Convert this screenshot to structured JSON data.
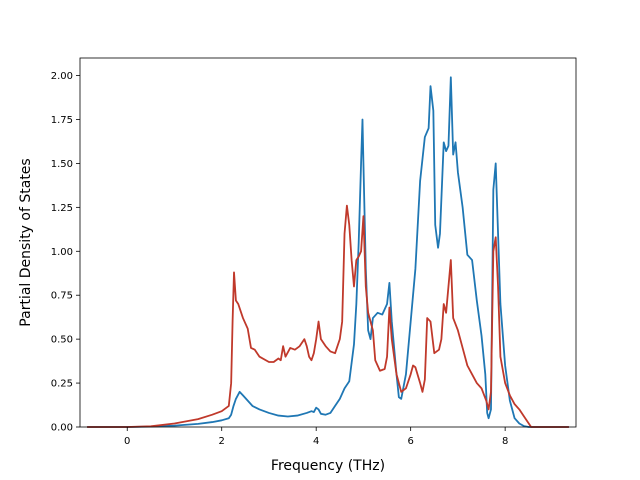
{
  "chart_data": {
    "type": "line",
    "title": "",
    "xlabel": "Frequency (THz)",
    "ylabel": "Partial Density of States",
    "xlim": [
      -1.0,
      9.5
    ],
    "ylim": [
      0,
      2.1
    ],
    "xticks": [
      0,
      2,
      4,
      6,
      8
    ],
    "xtick_labels": [
      "0",
      "2",
      "4",
      "6",
      "8"
    ],
    "yticks": [
      0,
      0.25,
      0.5,
      0.75,
      1.0,
      1.25,
      1.5,
      1.75,
      2.0
    ],
    "ytick_labels": [
      "0.00",
      "0.25",
      "0.50",
      "0.75",
      "1.00",
      "1.25",
      "1.50",
      "1.75",
      "2.00"
    ],
    "grid": false,
    "legend": "none",
    "series": [
      {
        "color": "#1f77b4",
        "points": [
          [
            -0.85,
            0
          ],
          [
            0,
            0
          ],
          [
            0.5,
            0.002
          ],
          [
            1.0,
            0.008
          ],
          [
            1.5,
            0.018
          ],
          [
            1.8,
            0.028
          ],
          [
            2.0,
            0.038
          ],
          [
            2.15,
            0.05
          ],
          [
            2.2,
            0.07
          ],
          [
            2.25,
            0.12
          ],
          [
            2.3,
            0.16
          ],
          [
            2.38,
            0.2
          ],
          [
            2.45,
            0.18
          ],
          [
            2.55,
            0.15
          ],
          [
            2.65,
            0.12
          ],
          [
            2.8,
            0.1
          ],
          [
            3.0,
            0.08
          ],
          [
            3.2,
            0.065
          ],
          [
            3.4,
            0.06
          ],
          [
            3.6,
            0.065
          ],
          [
            3.8,
            0.08
          ],
          [
            3.9,
            0.09
          ],
          [
            3.95,
            0.085
          ],
          [
            4.0,
            0.11
          ],
          [
            4.05,
            0.1
          ],
          [
            4.1,
            0.075
          ],
          [
            4.2,
            0.07
          ],
          [
            4.3,
            0.08
          ],
          [
            4.4,
            0.12
          ],
          [
            4.5,
            0.16
          ],
          [
            4.6,
            0.22
          ],
          [
            4.7,
            0.26
          ],
          [
            4.8,
            0.47
          ],
          [
            4.85,
            0.7
          ],
          [
            4.9,
            1.05
          ],
          [
            4.95,
            1.5
          ],
          [
            4.98,
            1.75
          ],
          [
            5.0,
            1.5
          ],
          [
            5.05,
            0.9
          ],
          [
            5.1,
            0.55
          ],
          [
            5.15,
            0.5
          ],
          [
            5.2,
            0.62
          ],
          [
            5.3,
            0.65
          ],
          [
            5.4,
            0.64
          ],
          [
            5.5,
            0.7
          ],
          [
            5.55,
            0.82
          ],
          [
            5.6,
            0.6
          ],
          [
            5.7,
            0.3
          ],
          [
            5.75,
            0.17
          ],
          [
            5.8,
            0.16
          ],
          [
            5.9,
            0.3
          ],
          [
            6.0,
            0.6
          ],
          [
            6.1,
            0.9
          ],
          [
            6.2,
            1.4
          ],
          [
            6.3,
            1.65
          ],
          [
            6.38,
            1.7
          ],
          [
            6.42,
            1.94
          ],
          [
            6.48,
            1.8
          ],
          [
            6.52,
            1.15
          ],
          [
            6.58,
            1.02
          ],
          [
            6.62,
            1.1
          ],
          [
            6.7,
            1.62
          ],
          [
            6.75,
            1.57
          ],
          [
            6.8,
            1.6
          ],
          [
            6.85,
            1.99
          ],
          [
            6.9,
            1.55
          ],
          [
            6.95,
            1.62
          ],
          [
            7.0,
            1.45
          ],
          [
            7.1,
            1.25
          ],
          [
            7.2,
            0.98
          ],
          [
            7.3,
            0.95
          ],
          [
            7.4,
            0.72
          ],
          [
            7.5,
            0.52
          ],
          [
            7.58,
            0.3
          ],
          [
            7.62,
            0.08
          ],
          [
            7.65,
            0.05
          ],
          [
            7.7,
            0.1
          ],
          [
            7.75,
            1.35
          ],
          [
            7.8,
            1.5
          ],
          [
            7.85,
            1.1
          ],
          [
            7.9,
            0.7
          ],
          [
            8.0,
            0.35
          ],
          [
            8.1,
            0.15
          ],
          [
            8.2,
            0.05
          ],
          [
            8.3,
            0.02
          ],
          [
            8.4,
            0.005
          ],
          [
            8.5,
            0
          ],
          [
            9.35,
            0
          ]
        ]
      },
      {
        "color": "#c0392b",
        "points": [
          [
            -0.85,
            0
          ],
          [
            0,
            0
          ],
          [
            0.5,
            0.004
          ],
          [
            1.0,
            0.02
          ],
          [
            1.5,
            0.045
          ],
          [
            1.8,
            0.07
          ],
          [
            2.0,
            0.09
          ],
          [
            2.15,
            0.12
          ],
          [
            2.2,
            0.25
          ],
          [
            2.23,
            0.6
          ],
          [
            2.26,
            0.88
          ],
          [
            2.3,
            0.72
          ],
          [
            2.35,
            0.7
          ],
          [
            2.45,
            0.62
          ],
          [
            2.55,
            0.56
          ],
          [
            2.62,
            0.45
          ],
          [
            2.7,
            0.44
          ],
          [
            2.8,
            0.4
          ],
          [
            3.0,
            0.37
          ],
          [
            3.1,
            0.37
          ],
          [
            3.2,
            0.39
          ],
          [
            3.25,
            0.38
          ],
          [
            3.3,
            0.46
          ],
          [
            3.35,
            0.4
          ],
          [
            3.45,
            0.45
          ],
          [
            3.55,
            0.44
          ],
          [
            3.65,
            0.46
          ],
          [
            3.75,
            0.5
          ],
          [
            3.8,
            0.46
          ],
          [
            3.85,
            0.4
          ],
          [
            3.9,
            0.38
          ],
          [
            3.95,
            0.42
          ],
          [
            4.0,
            0.5
          ],
          [
            4.05,
            0.6
          ],
          [
            4.1,
            0.5
          ],
          [
            4.2,
            0.46
          ],
          [
            4.3,
            0.43
          ],
          [
            4.4,
            0.42
          ],
          [
            4.5,
            0.5
          ],
          [
            4.55,
            0.6
          ],
          [
            4.6,
            1.1
          ],
          [
            4.65,
            1.26
          ],
          [
            4.7,
            1.15
          ],
          [
            4.75,
            0.95
          ],
          [
            4.8,
            0.8
          ],
          [
            4.85,
            0.95
          ],
          [
            4.9,
            0.97
          ],
          [
            4.95,
            1.0
          ],
          [
            5.0,
            1.2
          ],
          [
            5.05,
            0.8
          ],
          [
            5.1,
            0.65
          ],
          [
            5.2,
            0.55
          ],
          [
            5.25,
            0.38
          ],
          [
            5.35,
            0.32
          ],
          [
            5.45,
            0.33
          ],
          [
            5.5,
            0.4
          ],
          [
            5.55,
            0.68
          ],
          [
            5.6,
            0.5
          ],
          [
            5.7,
            0.3
          ],
          [
            5.8,
            0.2
          ],
          [
            5.9,
            0.22
          ],
          [
            6.0,
            0.3
          ],
          [
            6.05,
            0.35
          ],
          [
            6.1,
            0.34
          ],
          [
            6.2,
            0.25
          ],
          [
            6.25,
            0.2
          ],
          [
            6.3,
            0.27
          ],
          [
            6.35,
            0.62
          ],
          [
            6.42,
            0.6
          ],
          [
            6.5,
            0.42
          ],
          [
            6.6,
            0.44
          ],
          [
            6.65,
            0.5
          ],
          [
            6.7,
            0.7
          ],
          [
            6.75,
            0.65
          ],
          [
            6.8,
            0.8
          ],
          [
            6.85,
            0.95
          ],
          [
            6.9,
            0.62
          ],
          [
            7.0,
            0.55
          ],
          [
            7.1,
            0.45
          ],
          [
            7.2,
            0.35
          ],
          [
            7.3,
            0.3
          ],
          [
            7.4,
            0.25
          ],
          [
            7.5,
            0.22
          ],
          [
            7.6,
            0.15
          ],
          [
            7.65,
            0.1
          ],
          [
            7.7,
            0.2
          ],
          [
            7.75,
            1.0
          ],
          [
            7.8,
            1.08
          ],
          [
            7.85,
            0.8
          ],
          [
            7.9,
            0.4
          ],
          [
            8.0,
            0.25
          ],
          [
            8.1,
            0.18
          ],
          [
            8.2,
            0.13
          ],
          [
            8.3,
            0.1
          ],
          [
            8.4,
            0.06
          ],
          [
            8.5,
            0.02
          ],
          [
            8.55,
            0
          ],
          [
            9.35,
            0
          ]
        ]
      }
    ]
  }
}
